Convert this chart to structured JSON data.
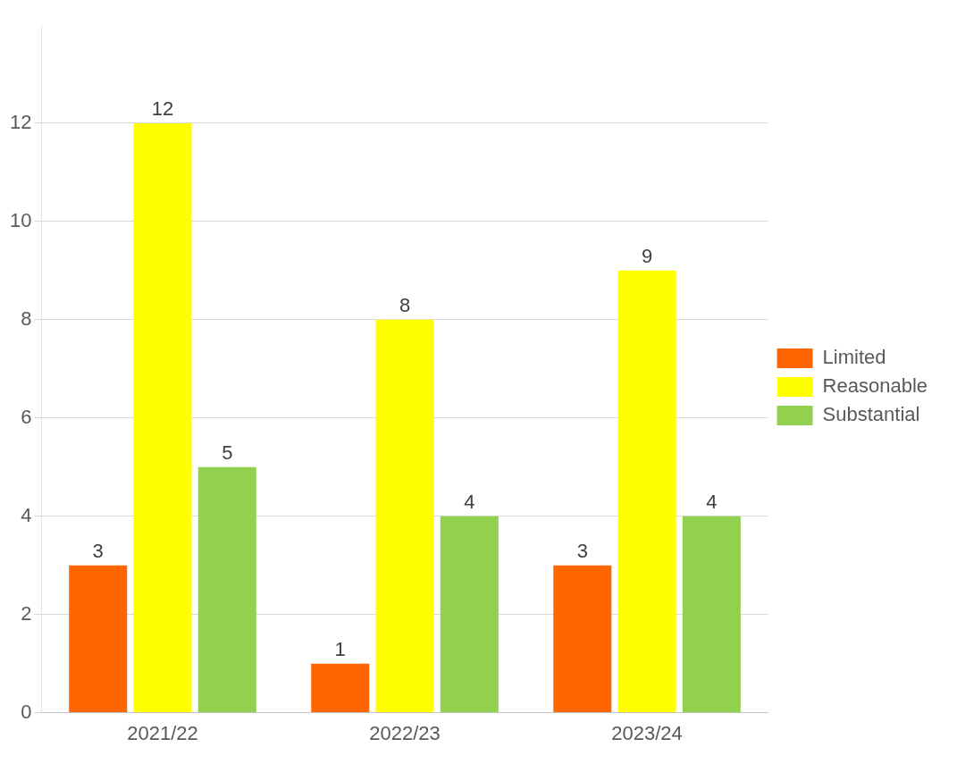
{
  "chart_data": {
    "type": "bar",
    "categories": [
      "2021/22",
      "2022/23",
      "2023/24"
    ],
    "series": [
      {
        "name": "Limited",
        "color": "#ff6600",
        "values": [
          3,
          1,
          3
        ]
      },
      {
        "name": "Reasonable",
        "color": "#ffff00",
        "values": [
          12,
          8,
          9
        ]
      },
      {
        "name": "Substantial",
        "color": "#92d050",
        "values": [
          5,
          4,
          4
        ]
      }
    ],
    "ylim": [
      0,
      14
    ],
    "yticks": [
      0,
      2,
      4,
      6,
      8,
      10,
      12
    ],
    "grid": "y",
    "legend": "right",
    "data_labels": true
  }
}
